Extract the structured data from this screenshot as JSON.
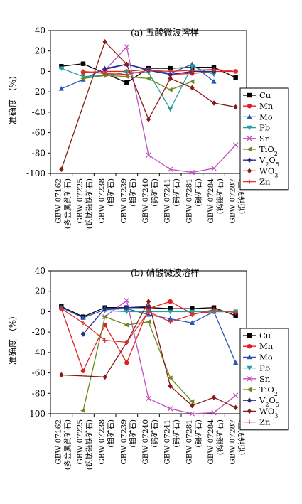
{
  "chart_data": [
    {
      "type": "line",
      "title": "(a) 五酸微波溶样",
      "xlabel": "",
      "ylabel": "准确度 （%）",
      "ylim": [
        -100,
        40
      ],
      "yticks": [
        40,
        20,
        0,
        -20,
        -40,
        -60,
        -80,
        -100
      ],
      "categories": [
        {
          "code": "GBW 07162",
          "sub": "(多金属贫矿石)"
        },
        {
          "code": "GBW 07225",
          "sub": "(钒钛磁铁矿石)"
        },
        {
          "code": "GBW 07238",
          "sub": "(钼矿石)"
        },
        {
          "code": "GBW 07239",
          "sub": "(钼矿石)"
        },
        {
          "code": "GBW 07240",
          "sub": "(钨矿石)"
        },
        {
          "code": "GBW 07241",
          "sub": "(钨矿石)"
        },
        {
          "code": "GBW 07281",
          "sub": "(锡矿石)"
        },
        {
          "code": "GBW 07284",
          "sub": "(钨铋矿石)"
        },
        {
          "code": "GBW 07287",
          "sub": "(铅锌矿石)"
        }
      ],
      "legend_position": "right",
      "series": [
        {
          "name": "Cu",
          "color": "#000000",
          "marker": "square",
          "points": [
            [
              0,
              5
            ],
            [
              1,
              7.5
            ],
            [
              2,
              -2
            ],
            [
              3,
              -11
            ],
            [
              4,
              3
            ],
            [
              5,
              3
            ],
            [
              6,
              4
            ],
            [
              7,
              4
            ],
            [
              8,
              -6
            ]
          ]
        },
        {
          "name": "Mn",
          "color": "#e02020",
          "marker": "circle",
          "points": [
            [
              1,
              -1
            ],
            [
              2,
              0
            ],
            [
              3,
              0
            ],
            [
              4,
              2
            ],
            [
              5,
              -3
            ],
            [
              6,
              -2
            ],
            [
              7,
              0
            ],
            [
              8,
              0
            ]
          ]
        },
        {
          "name": "Mo",
          "color": "#2a55b8",
          "marker": "triangle",
          "points": [
            [
              0,
              -17
            ],
            [
              1,
              -8
            ],
            [
              2,
              3
            ],
            [
              3,
              7
            ],
            [
              4,
              2
            ],
            [
              5,
              -2
            ],
            [
              6,
              7
            ],
            [
              7,
              -10
            ]
          ]
        },
        {
          "name": "Pb",
          "color": "#20a0a0",
          "marker": "triangle-down",
          "points": [
            [
              0,
              3
            ],
            [
              1,
              -5
            ],
            [
              2,
              -4
            ],
            [
              3,
              -1
            ],
            [
              4,
              -1
            ],
            [
              5,
              -37
            ],
            [
              6,
              5
            ],
            [
              7,
              -3
            ]
          ]
        },
        {
          "name": "Sn",
          "color": "#c050c0",
          "marker": "x",
          "points": [
            [
              2,
              1
            ],
            [
              3,
              24
            ],
            [
              4,
              -82
            ],
            [
              5,
              -96
            ],
            [
              6,
              -99
            ],
            [
              7,
              -95
            ],
            [
              8,
              -72
            ]
          ]
        },
        {
          "name": "TiO",
          "sub": "2",
          "color": "#6a8a1a",
          "marker": "triangle-left",
          "points": [
            [
              1,
              -7
            ],
            [
              2,
              -4
            ],
            [
              3,
              -5
            ],
            [
              4,
              -7
            ],
            [
              5,
              -18
            ],
            [
              6,
              -10
            ]
          ]
        },
        {
          "name": "V",
          "sub": "2",
          "name2": "O",
          "sub2": "5",
          "color": "#2a2a8a",
          "marker": "diamond",
          "points": [
            [
              2,
              2
            ],
            [
              3,
              7
            ],
            [
              4,
              1
            ],
            [
              5,
              -3
            ],
            [
              6,
              0
            ],
            [
              7,
              0
            ]
          ]
        },
        {
          "name": "WO",
          "sub": "3",
          "color": "#8a1a1a",
          "marker": "diamond",
          "points": [
            [
              0,
              -96
            ],
            [
              2,
              29
            ],
            [
              3,
              7
            ],
            [
              4,
              -47
            ],
            [
              5,
              -7
            ],
            [
              6,
              -16
            ],
            [
              7,
              -31
            ],
            [
              8,
              -35
            ]
          ]
        },
        {
          "name": "Zn",
          "color": "#e03030",
          "marker": "plus",
          "points": [
            [
              1,
              0
            ],
            [
              2,
              -2
            ],
            [
              3,
              -3
            ],
            [
              4,
              1
            ],
            [
              5,
              0
            ],
            [
              6,
              1
            ],
            [
              7,
              2
            ],
            [
              8,
              0
            ]
          ]
        }
      ]
    },
    {
      "type": "line",
      "title": "(b) 硝酸微波溶样",
      "xlabel": "",
      "ylabel": "准确度 （%）",
      "ylim": [
        -100,
        40
      ],
      "yticks": [
        40,
        20,
        0,
        -20,
        -40,
        -60,
        -80,
        -100
      ],
      "categories": [
        {
          "code": "GBW 07162",
          "sub": "(多金属贫矿石)"
        },
        {
          "code": "GBW 07225",
          "sub": "(钒钛磁铁矿石)"
        },
        {
          "code": "GBW 07238",
          "sub": "(钼矿石)"
        },
        {
          "code": "GBW 07239",
          "sub": "(钼矿石)"
        },
        {
          "code": "GBW 07240",
          "sub": "(钨矿石)"
        },
        {
          "code": "GBW 07241",
          "sub": "(钨矿石)"
        },
        {
          "code": "GBW 07281",
          "sub": "(锡矿石)"
        },
        {
          "code": "GBW 07284",
          "sub": "(钨铋矿石)"
        },
        {
          "code": "GBW 07287",
          "sub": "(铅锌矿石)"
        }
      ],
      "legend_position": "right",
      "series": [
        {
          "name": "Cu",
          "color": "#000000",
          "marker": "square",
          "points": [
            [
              0,
              5
            ],
            [
              1,
              -5
            ],
            [
              2,
              4
            ],
            [
              3,
              4
            ],
            [
              4,
              4
            ],
            [
              5,
              3
            ],
            [
              6,
              3
            ],
            [
              7,
              4
            ],
            [
              8,
              -4
            ]
          ]
        },
        {
          "name": "Mn",
          "color": "#e02020",
          "marker": "circle",
          "points": [
            [
              0,
              3
            ],
            [
              1,
              -58
            ],
            [
              2,
              -13
            ],
            [
              3,
              -50
            ],
            [
              4,
              3
            ],
            [
              5,
              10
            ],
            [
              6,
              -2
            ],
            [
              7,
              0
            ],
            [
              8,
              0
            ]
          ]
        },
        {
          "name": "Mo",
          "color": "#2a55b8",
          "marker": "triangle",
          "points": [
            [
              0,
              4
            ],
            [
              1,
              -6
            ],
            [
              2,
              2
            ],
            [
              3,
              3
            ],
            [
              4,
              -3
            ],
            [
              5,
              -7
            ],
            [
              6,
              -11
            ],
            [
              7,
              0
            ],
            [
              8,
              -50
            ]
          ]
        },
        {
          "name": "Pb",
          "color": "#20a0a0",
          "marker": "triangle-down",
          "points": [
            [
              2,
              1
            ],
            [
              3,
              0
            ],
            [
              4,
              0
            ],
            [
              5,
              0
            ],
            [
              6,
              0
            ],
            [
              7,
              0
            ],
            [
              8,
              0
            ]
          ]
        },
        {
          "name": "Sn",
          "color": "#c050c0",
          "marker": "x",
          "points": [
            [
              2,
              -5
            ],
            [
              3,
              11
            ],
            [
              4,
              -85
            ],
            [
              5,
              -95
            ],
            [
              6,
              -100
            ],
            [
              7,
              -99
            ],
            [
              8,
              -82
            ]
          ]
        },
        {
          "name": "TiO",
          "sub": "2",
          "color": "#6a8a1a",
          "marker": "triangle-left",
          "points": [
            [
              1,
              -97
            ],
            [
              2,
              -5
            ],
            [
              3,
              -13
            ],
            [
              4,
              -10
            ],
            [
              5,
              -65
            ],
            [
              6,
              -88
            ]
          ]
        },
        {
          "name": "V",
          "sub": "2",
          "name2": "O",
          "sub2": "5",
          "color": "#2a2a8a",
          "marker": "diamond",
          "points": [
            [
              1,
              -22
            ],
            [
              2,
              3
            ],
            [
              3,
              4
            ],
            [
              4,
              5
            ]
          ]
        },
        {
          "name": "WO",
          "sub": "3",
          "color": "#8a1a1a",
          "marker": "diamond",
          "points": [
            [
              0,
              -62
            ],
            [
              2,
              -64
            ],
            [
              3,
              -30
            ],
            [
              4,
              10
            ],
            [
              5,
              -73
            ],
            [
              6,
              -92
            ],
            [
              7,
              -84
            ],
            [
              8,
              -94
            ]
          ]
        },
        {
          "name": "Zn",
          "color": "#e03030",
          "marker": "plus",
          "points": [
            [
              0,
              3
            ],
            [
              1,
              -11
            ],
            [
              2,
              -28
            ],
            [
              3,
              -30
            ],
            [
              4,
              0
            ],
            [
              5,
              -10
            ],
            [
              6,
              -3
            ],
            [
              7,
              2
            ],
            [
              8,
              -1
            ]
          ]
        }
      ]
    }
  ]
}
